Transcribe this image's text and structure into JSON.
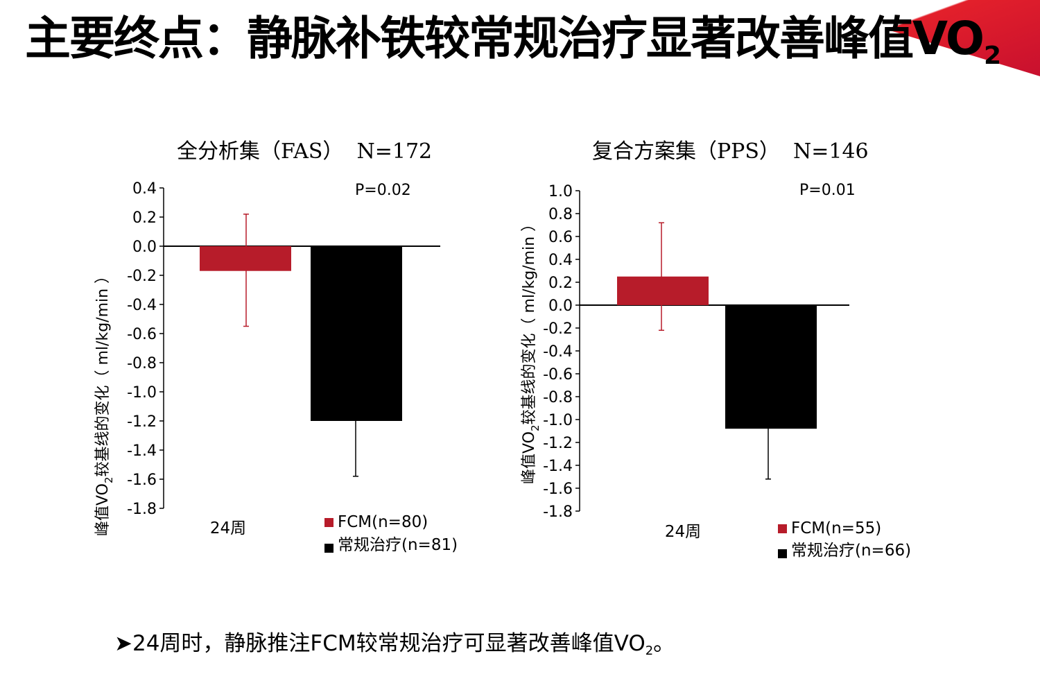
{
  "page": {
    "title_main": "主要终点：静脉补铁较常规治疗显著改善峰值VO",
    "title_sub": "2",
    "bullet_marker": "➤",
    "bullet_main": "24周时，静脉推注FCM较常规治疗可显著改善峰值VO",
    "bullet_sub": "2",
    "bullet_end": "。"
  },
  "colors": {
    "fcm": "#b71c2a",
    "standard": "#000000",
    "accent": "#d7141c"
  },
  "chart_data": [
    {
      "type": "bar",
      "title": "全分析集（FAS）  N=172",
      "p_value": "P=0.02",
      "ylabel_pre": "峰值VO",
      "ylabel_sub": "2",
      "ylabel_post": "较基线的变化（ ml/kg/min ）",
      "ylim": [
        -1.8,
        0.4
      ],
      "yticks": [
        0.4,
        0.2,
        0.0,
        -0.2,
        -0.4,
        -0.6,
        -0.8,
        -1.0,
        -1.2,
        -1.4,
        -1.6,
        -1.8
      ],
      "ytick_labels": [
        "0.4",
        "0.2",
        "0.0",
        "-0.2",
        "-0.4",
        "-0.6",
        "-0.8",
        "-1.0",
        "-1.2",
        "-1.4",
        "-1.6",
        "-1.8"
      ],
      "categories": [
        "24周"
      ],
      "series": [
        {
          "name": "FCM(n=80)",
          "color": "#b71c2a",
          "values": [
            -0.17
          ],
          "err_low": [
            -0.55
          ],
          "err_high": [
            0.22
          ]
        },
        {
          "name": "常规治疗(n=81)",
          "color": "#000000",
          "values": [
            -1.2
          ],
          "err_low": [
            -1.58
          ],
          "err_high": [
            0.0
          ]
        }
      ]
    },
    {
      "type": "bar",
      "title": "复合方案集（PPS）  N=146",
      "p_value": "P=0.01",
      "ylabel_pre": "峰值VO",
      "ylabel_sub": "2",
      "ylabel_post": "较基线的变化（ ml/kg/min ）",
      "ylim": [
        -1.8,
        1.0
      ],
      "yticks": [
        1.0,
        0.8,
        0.6,
        0.4,
        0.2,
        0.0,
        -0.2,
        -0.4,
        -0.6,
        -0.8,
        -1.0,
        -1.2,
        -1.4,
        -1.6,
        -1.8
      ],
      "ytick_labels": [
        "1.0",
        "0.8",
        "0.6",
        "0.4",
        "0.2",
        "0.0",
        "-0.2",
        "-0.4",
        "-0.6",
        "-0.8",
        "-1.0",
        "-1.2",
        "-1.4",
        "-1.6",
        "-1.8"
      ],
      "categories": [
        "24周"
      ],
      "series": [
        {
          "name": "FCM(n=55)",
          "color": "#b71c2a",
          "values": [
            0.25
          ],
          "err_low": [
            -0.22
          ],
          "err_high": [
            0.72
          ]
        },
        {
          "name": "常规治疗(n=66)",
          "color": "#000000",
          "values": [
            -1.08
          ],
          "err_low": [
            -1.52
          ],
          "err_high": [
            0.0
          ]
        }
      ]
    }
  ]
}
